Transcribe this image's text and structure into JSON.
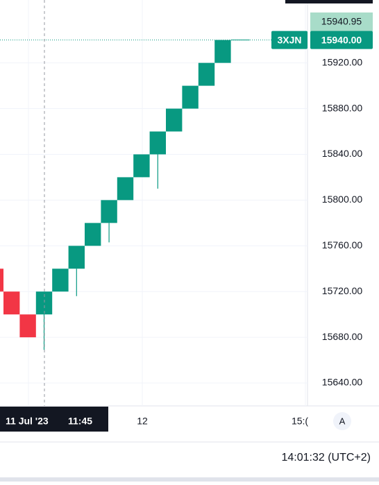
{
  "chart_data": {
    "type": "renko",
    "open": [
      15740,
      15720,
      15700,
      15700,
      15720,
      15740,
      15760,
      15780,
      15800,
      15820,
      15840,
      15860,
      15880,
      15900,
      15920
    ],
    "close": [
      15720,
      15700,
      15680,
      15720,
      15740,
      15760,
      15780,
      15800,
      15820,
      15840,
      15860,
      15880,
      15900,
      15920,
      15940
    ],
    "low": [
      null,
      null,
      null,
      15669,
      null,
      15716,
      null,
      15763,
      null,
      null,
      15810,
      null,
      null,
      null,
      null
    ],
    "up_color": "#089981",
    "down_color": "#f23645",
    "ylim": [
      15620,
      15975
    ],
    "yticks": [
      {
        "value": 15640,
        "label": "15640.00"
      },
      {
        "value": 15680,
        "label": "15680.00"
      },
      {
        "value": 15720,
        "label": "15720.00"
      },
      {
        "value": 15760,
        "label": "15760.00"
      },
      {
        "value": 15800,
        "label": "15800.00"
      },
      {
        "value": 15840,
        "label": "15840.00"
      },
      {
        "value": 15880,
        "label": "15880.00"
      },
      {
        "value": 15920,
        "label": "15920.00"
      }
    ],
    "x_labels": [
      "12",
      "15:("
    ],
    "last_price": {
      "value": 15940,
      "label": "15940.00"
    },
    "symbol": "3XJN",
    "upper_label": 15940.95,
    "crosshair": {
      "date": "11 Jul '23",
      "time": "11:45"
    },
    "auto_button": "A",
    "clock": "14:01:32 (UTC+2)",
    "grid": true
  }
}
